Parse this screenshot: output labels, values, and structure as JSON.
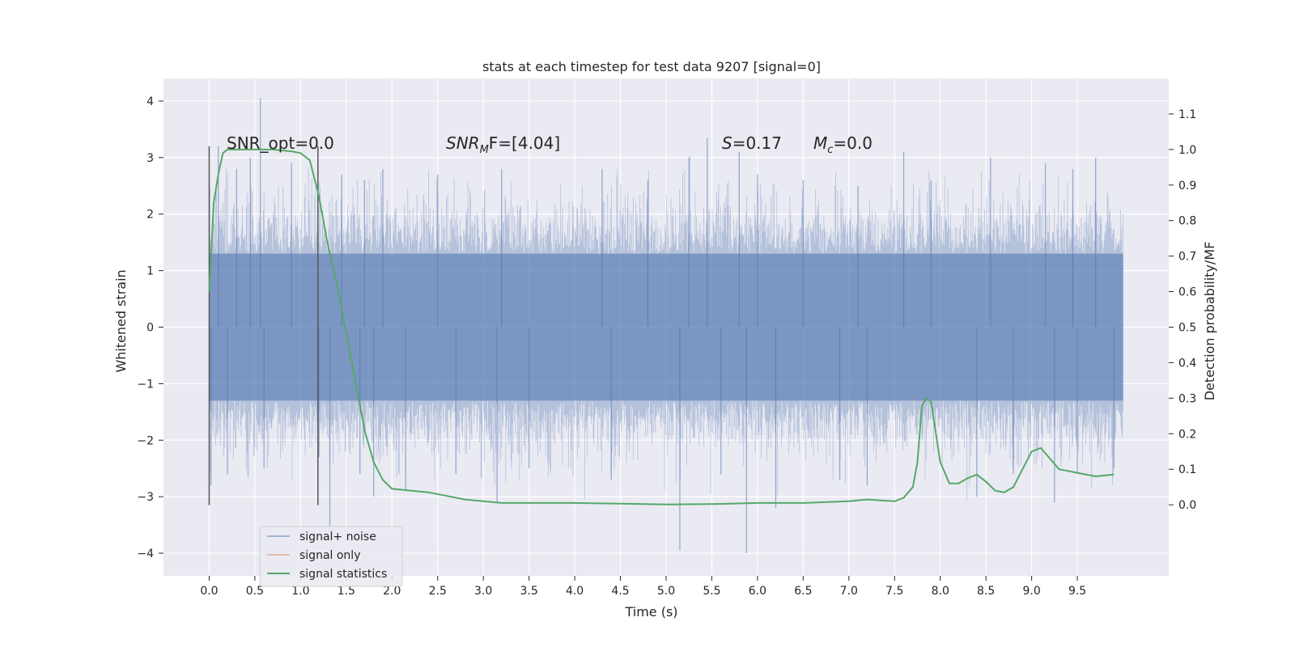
{
  "chart_data": {
    "type": "line",
    "title": "stats at each timestep for test data 9207 [signal=0]",
    "xlabel": "Time (s)",
    "ylabel_left": "Whitened strain",
    "ylabel_right": "Detection probability/MF",
    "xlim": [
      -0.5,
      10.5
    ],
    "ylim_left": [
      -4.4,
      4.4
    ],
    "ylim_right": [
      -0.2,
      1.2
    ],
    "x_ticks": [
      "0.0",
      "0.5",
      "1.0",
      "1.5",
      "2.0",
      "2.5",
      "3.0",
      "3.5",
      "4.0",
      "4.5",
      "5.0",
      "5.5",
      "6.0",
      "6.5",
      "7.0",
      "7.5",
      "8.0",
      "8.5",
      "9.0",
      "9.5"
    ],
    "y_left_ticks": [
      "4",
      "3",
      "2",
      "1",
      "0",
      "−1",
      "−2",
      "−3",
      "−4"
    ],
    "y_right_ticks": [
      "1.1",
      "1.0",
      "0.9",
      "0.8",
      "0.7",
      "0.6",
      "0.5",
      "0.4",
      "0.3",
      "0.2",
      "0.1",
      "0.0"
    ],
    "grid": true,
    "legend_position": "bottom-left",
    "colors": {
      "noise": "#4c72b0",
      "signal_only": "#dd8452",
      "statistics": "#55a868",
      "background": "#eaeaf2",
      "vline": "#555555"
    },
    "annotations": {
      "snr_opt": "SNR_opt=0.0",
      "snr_mf_var": "SNR",
      "snr_mf_sub": "M",
      "snr_mf_tail": "F=[4.04]",
      "s_var": "S",
      "s_value": "=0.17",
      "mc_var": "M",
      "mc_sub": "c",
      "mc_value": "=0.0"
    },
    "vertical_lines_x": [
      0.0,
      1.19
    ],
    "noise_series": {
      "name": "signal+ noise",
      "x_range": [
        0.0,
        10.0
      ],
      "core_band": [
        -1.3,
        1.3
      ],
      "spike_peaks": [
        {
          "x": 0.02,
          "y": -2.8
        },
        {
          "x": 0.1,
          "y": 3.2
        },
        {
          "x": 0.2,
          "y": -2.6
        },
        {
          "x": 0.3,
          "y": 2.8
        },
        {
          "x": 0.45,
          "y": 3.0
        },
        {
          "x": 0.56,
          "y": 4.05
        },
        {
          "x": 0.6,
          "y": -2.5
        },
        {
          "x": 0.9,
          "y": 2.9
        },
        {
          "x": 1.2,
          "y": -2.3
        },
        {
          "x": 1.32,
          "y": -3.6
        },
        {
          "x": 1.45,
          "y": 2.7
        },
        {
          "x": 1.65,
          "y": -2.6
        },
        {
          "x": 1.7,
          "y": 2.6
        },
        {
          "x": 1.8,
          "y": -3.0
        },
        {
          "x": 1.9,
          "y": 2.8
        },
        {
          "x": 2.15,
          "y": -2.9
        },
        {
          "x": 2.5,
          "y": 2.7
        },
        {
          "x": 2.7,
          "y": -2.6
        },
        {
          "x": 3.15,
          "y": -3.1
        },
        {
          "x": 3.2,
          "y": 2.8
        },
        {
          "x": 3.5,
          "y": -2.5
        },
        {
          "x": 4.3,
          "y": 2.8
        },
        {
          "x": 4.4,
          "y": -2.7
        },
        {
          "x": 4.8,
          "y": 2.6
        },
        {
          "x": 5.15,
          "y": -3.95
        },
        {
          "x": 5.25,
          "y": 3.0
        },
        {
          "x": 5.45,
          "y": 3.35
        },
        {
          "x": 5.6,
          "y": -2.6
        },
        {
          "x": 5.8,
          "y": 3.1
        },
        {
          "x": 5.88,
          "y": -4.0
        },
        {
          "x": 6.0,
          "y": 2.7
        },
        {
          "x": 6.2,
          "y": -3.2
        },
        {
          "x": 6.5,
          "y": 2.6
        },
        {
          "x": 6.9,
          "y": -2.7
        },
        {
          "x": 7.1,
          "y": 2.5
        },
        {
          "x": 7.2,
          "y": -2.8
        },
        {
          "x": 7.6,
          "y": 3.1
        },
        {
          "x": 7.9,
          "y": 2.6
        },
        {
          "x": 8.4,
          "y": -3.0
        },
        {
          "x": 8.55,
          "y": 3.0
        },
        {
          "x": 8.8,
          "y": -2.6
        },
        {
          "x": 9.15,
          "y": 2.9
        },
        {
          "x": 9.25,
          "y": -3.1
        },
        {
          "x": 9.45,
          "y": 2.8
        },
        {
          "x": 9.5,
          "y": -2.6
        },
        {
          "x": 9.7,
          "y": 3.0
        },
        {
          "x": 9.9,
          "y": -2.5
        }
      ]
    },
    "signal_only_series": {
      "name": "signal only"
    },
    "statistics_series": {
      "name": "signal statistics",
      "x": [
        0.0,
        0.05,
        0.1,
        0.15,
        0.2,
        0.3,
        0.5,
        0.7,
        0.9,
        1.0,
        1.1,
        1.2,
        1.3,
        1.4,
        1.5,
        1.6,
        1.7,
        1.8,
        1.9,
        2.0,
        2.2,
        2.4,
        2.6,
        2.8,
        3.0,
        3.2,
        3.5,
        4.0,
        4.5,
        5.0,
        5.5,
        6.0,
        6.5,
        7.0,
        7.2,
        7.5,
        7.6,
        7.7,
        7.75,
        7.8,
        7.85,
        7.9,
        8.0,
        8.1,
        8.2,
        8.3,
        8.4,
        8.5,
        8.6,
        8.7,
        8.8,
        8.9,
        9.0,
        9.1,
        9.2,
        9.3,
        9.5,
        9.7,
        9.9
      ],
      "y": [
        0.6,
        0.85,
        0.93,
        0.99,
        1.0,
        1.0,
        1.0,
        1.0,
        0.995,
        0.99,
        0.97,
        0.87,
        0.73,
        0.62,
        0.48,
        0.35,
        0.21,
        0.12,
        0.07,
        0.045,
        0.04,
        0.035,
        0.025,
        0.015,
        0.01,
        0.005,
        0.005,
        0.005,
        0.003,
        0.001,
        0.002,
        0.005,
        0.005,
        0.01,
        0.015,
        0.01,
        0.02,
        0.05,
        0.12,
        0.28,
        0.3,
        0.29,
        0.12,
        0.06,
        0.06,
        0.075,
        0.085,
        0.065,
        0.04,
        0.035,
        0.05,
        0.1,
        0.15,
        0.16,
        0.13,
        0.1,
        0.09,
        0.08,
        0.085
      ]
    }
  }
}
